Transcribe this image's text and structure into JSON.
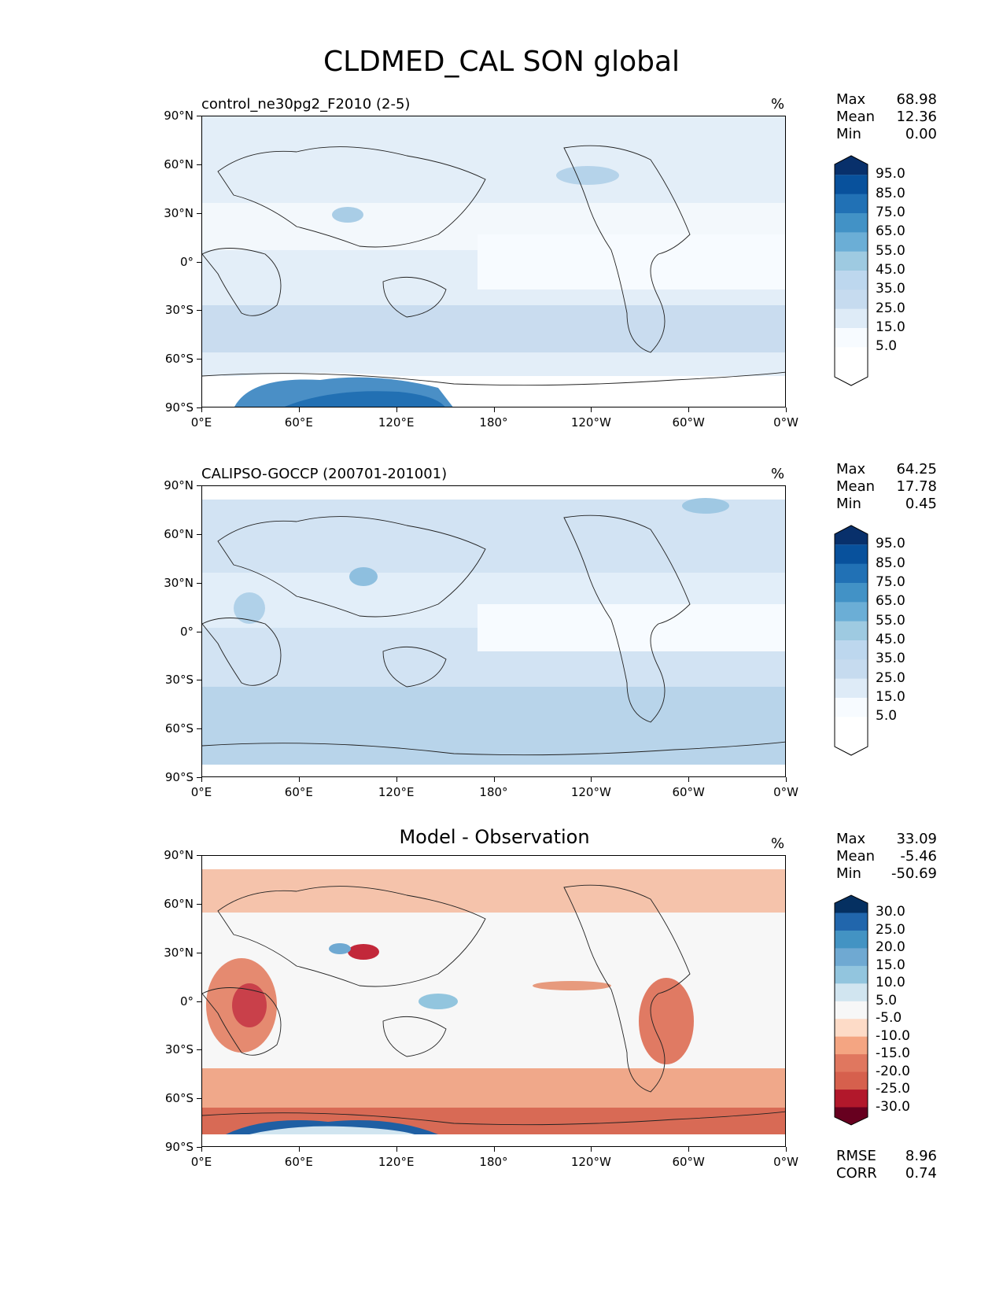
{
  "title": "CLDMED_CAL SON global",
  "lat_labels": [
    "90°N",
    "60°N",
    "30°N",
    "0°",
    "30°S",
    "60°S",
    "90°S"
  ],
  "lon_labels": [
    "0°E",
    "60°E",
    "120°E",
    "180°",
    "120°W",
    "60°W",
    "0°W"
  ],
  "panels": [
    {
      "title": "control_ne30pg2_F2010 (2-5)",
      "title_position": "left",
      "units": "%",
      "stats": {
        "max_label": "Max",
        "max": "68.98",
        "mean_label": "Mean",
        "mean": "12.36",
        "min_label": "Min",
        "min": "0.00"
      },
      "colorbar": {
        "labels": [
          "95.0",
          "85.0",
          "75.0",
          "65.0",
          "55.0",
          "45.0",
          "35.0",
          "25.0",
          "15.0",
          "5.0"
        ],
        "colors": [
          "#08306b",
          "#08519c",
          "#2171b5",
          "#4292c6",
          "#6baed6",
          "#9ecae1",
          "#bdd7ee",
          "#c6dbef",
          "#deebf7",
          "#f7fbff",
          "#ffffff",
          "#ffffff"
        ]
      }
    },
    {
      "title": "CALIPSO-GOCCP (200701-201001)",
      "title_position": "left",
      "units": "%",
      "stats": {
        "max_label": "Max",
        "max": "64.25",
        "mean_label": "Mean",
        "mean": "17.78",
        "min_label": "Min",
        "min": "0.45"
      },
      "colorbar": {
        "labels": [
          "95.0",
          "85.0",
          "75.0",
          "65.0",
          "55.0",
          "45.0",
          "35.0",
          "25.0",
          "15.0",
          "5.0"
        ],
        "colors": [
          "#08306b",
          "#08519c",
          "#2171b5",
          "#4292c6",
          "#6baed6",
          "#9ecae1",
          "#bdd7ee",
          "#c6dbef",
          "#deebf7",
          "#f7fbff",
          "#ffffff",
          "#ffffff"
        ]
      }
    },
    {
      "title": "Model - Observation",
      "title_position": "center",
      "units": "%",
      "stats": {
        "max_label": "Max",
        "max": "33.09",
        "mean_label": "Mean",
        "mean": "-5.46",
        "min_label": "Min",
        "min": "-50.69"
      },
      "colorbar": {
        "labels": [
          "30.0",
          "25.0",
          "20.0",
          "15.0",
          "10.0",
          "5.0",
          "-5.0",
          "-10.0",
          "-15.0",
          "-20.0",
          "-25.0",
          "-30.0"
        ],
        "colors": [
          "#053061",
          "#2166ac",
          "#4393c3",
          "#6fa9d2",
          "#92c5de",
          "#d1e5f0",
          "#f7f7f7",
          "#fddbc7",
          "#f4a582",
          "#e0775f",
          "#d6604d",
          "#b2182b",
          "#67001f"
        ]
      },
      "metrics": {
        "rmse_label": "RMSE",
        "rmse": "8.96",
        "corr_label": "CORR",
        "corr": "0.74"
      }
    }
  ]
}
